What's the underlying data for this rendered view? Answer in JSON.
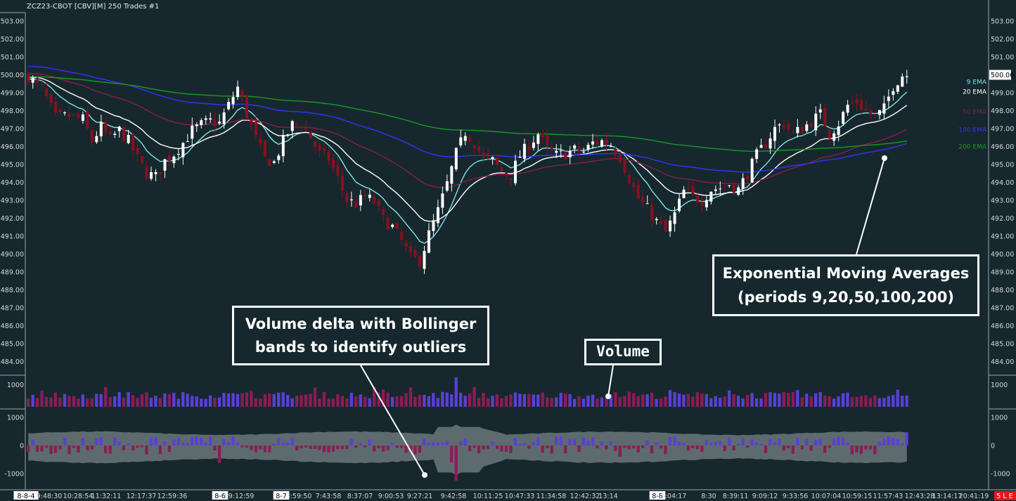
{
  "header": {
    "title": "ZCZ23-CBOT [CBV][M]  250 Trades  #1"
  },
  "chart_data": {
    "type": "candlestick",
    "symbol": "ZCZ23-CBOT",
    "price_axis": {
      "ticks": [
        "503.00",
        "502.00",
        "501.00",
        "500.00",
        "499.00",
        "498.00",
        "497.00",
        "496.00",
        "495.00",
        "494.00",
        "493.00",
        "492.00",
        "491.00",
        "490.00",
        "489.00",
        "488.00",
        "487.00",
        "486.00",
        "485.00",
        "484.00"
      ],
      "range": [
        483.6,
        503.6
      ],
      "last_price": "500.00"
    },
    "price_path": [
      [
        0,
        499.9
      ],
      [
        3,
        499.2
      ],
      [
        6,
        497.6
      ],
      [
        9,
        497.7
      ],
      [
        12,
        497.5
      ],
      [
        14,
        496.3
      ],
      [
        16,
        497.1
      ],
      [
        18,
        496.4
      ],
      [
        20,
        496.9
      ],
      [
        22,
        496.3
      ],
      [
        24,
        495.3
      ],
      [
        26,
        494.5
      ],
      [
        28,
        494.3
      ],
      [
        30,
        495.2
      ],
      [
        32,
        495.6
      ],
      [
        34,
        496.2
      ],
      [
        36,
        496.9
      ],
      [
        38,
        497.2
      ],
      [
        40,
        497.4
      ],
      [
        42,
        497.3
      ],
      [
        44,
        498.3
      ],
      [
        46,
        499.3
      ],
      [
        48,
        497.8
      ],
      [
        50,
        496.4
      ],
      [
        52,
        495.3
      ],
      [
        54,
        495.1
      ],
      [
        56,
        496.3
      ],
      [
        58,
        497.2
      ],
      [
        60,
        497.3
      ],
      [
        62,
        496.5
      ],
      [
        64,
        495.6
      ],
      [
        66,
        495.3
      ],
      [
        68,
        494.2
      ],
      [
        70,
        493.0
      ],
      [
        72,
        492.8
      ],
      [
        74,
        493.2
      ],
      [
        76,
        492.9
      ],
      [
        78,
        491.9
      ],
      [
        80,
        491.5
      ],
      [
        82,
        490.7
      ],
      [
        84,
        489.8
      ],
      [
        86,
        489.6
      ],
      [
        88,
        491.1
      ],
      [
        90,
        492.4
      ],
      [
        92,
        493.9
      ],
      [
        94,
        495.6
      ],
      [
        96,
        496.8
      ],
      [
        98,
        496.2
      ],
      [
        100,
        495.3
      ],
      [
        102,
        495.2
      ],
      [
        104,
        494.6
      ],
      [
        106,
        494.4
      ],
      [
        108,
        495.5
      ],
      [
        110,
        496.1
      ],
      [
        112,
        496.7
      ],
      [
        114,
        495.8
      ],
      [
        116,
        495.5
      ],
      [
        118,
        495.6
      ],
      [
        120,
        495.8
      ],
      [
        122,
        495.7
      ],
      [
        124,
        496.2
      ],
      [
        126,
        496.3
      ],
      [
        128,
        496.1
      ],
      [
        130,
        495.4
      ],
      [
        132,
        494.2
      ],
      [
        134,
        493.1
      ],
      [
        136,
        492.5
      ],
      [
        138,
        491.8
      ],
      [
        140,
        491.2
      ],
      [
        142,
        492.2
      ],
      [
        144,
        493.5
      ],
      [
        146,
        493.2
      ],
      [
        148,
        493.0
      ],
      [
        150,
        493.6
      ],
      [
        152,
        493.7
      ],
      [
        154,
        493.9
      ],
      [
        156,
        493.6
      ],
      [
        158,
        494.5
      ],
      [
        160,
        495.5
      ],
      [
        162,
        496.2
      ],
      [
        164,
        497.0
      ],
      [
        166,
        497.3
      ],
      [
        168,
        496.7
      ],
      [
        170,
        497.0
      ],
      [
        172,
        497.4
      ],
      [
        174,
        497.8
      ],
      [
        176,
        496.7
      ],
      [
        178,
        497.3
      ],
      [
        180,
        498.3
      ],
      [
        182,
        498.5
      ],
      [
        184,
        498.0
      ],
      [
        186,
        497.6
      ],
      [
        188,
        498.1
      ],
      [
        190,
        499.4
      ],
      [
        192,
        500.0
      ],
      [
        193,
        500.0
      ]
    ],
    "moving_averages": [
      {
        "name": "9 EMA",
        "color": "#7fe3e8",
        "label_price": 499.6,
        "start": 499.8
      },
      {
        "name": "20 EMA",
        "color": "#ffffff",
        "label_price": 499.05,
        "start": 499.9
      },
      {
        "name": "50 EMA",
        "color": "#8b1c4a",
        "label_price": 497.95,
        "start": 500.1
      },
      {
        "name": "100 EMA",
        "color": "#3333ff",
        "label_price": 496.95,
        "start": 500.5
      },
      {
        "name": "200 EMA",
        "color": "#179a25",
        "label_price": 496.0,
        "start": 499.9
      }
    ],
    "volume": {
      "ticks": [
        "1000"
      ],
      "range": [
        0,
        1500
      ]
    },
    "volume_delta": {
      "ticks": [
        "1000",
        "0",
        "-1000"
      ],
      "range": [
        -1300,
        1450
      ],
      "band_color": "#6a777b"
    },
    "time_axis": {
      "labels": [
        {
          "text": "8-8-4",
          "boxed": true
        },
        {
          "text": "9:48:30"
        },
        {
          "text": "10:28:54"
        },
        {
          "text": "11:32:11"
        },
        {
          "text": "12:17:37"
        },
        {
          "text": "12:59:36"
        },
        {
          "text": "8-6",
          "boxed": true
        },
        {
          "text": "19:12:59"
        },
        {
          "text": "8-7",
          "boxed": true
        },
        {
          "text": "3:59:50"
        },
        {
          "text": "7:43:58"
        },
        {
          "text": "8:37:07"
        },
        {
          "text": "9:00:53"
        },
        {
          "text": "9:27:21"
        },
        {
          "text": "9:42:58"
        },
        {
          "text": "10:11:25"
        },
        {
          "text": "10:47:33"
        },
        {
          "text": "11:34:58"
        },
        {
          "text": "12:42:32"
        },
        {
          "text": "13:14"
        },
        {
          "text": "8-8",
          "boxed": true
        },
        {
          "text": "5:04:17"
        },
        {
          "text": "8:30"
        },
        {
          "text": "8:39:11"
        },
        {
          "text": "9:09:12"
        },
        {
          "text": "9:33:56"
        },
        {
          "text": "10:07:04"
        },
        {
          "text": "10:59:15"
        },
        {
          "text": "11:57:43"
        },
        {
          "text": "12:43:28"
        },
        {
          "text": "13:14:17"
        },
        {
          "text": "20:41:19"
        }
      ],
      "status": "5 L E"
    },
    "colors": {
      "up": "#ffffff",
      "down": "#8b0f1f",
      "vol_up": "#5a3fd6",
      "vol_down": "#8b1c56",
      "background": "#16282d"
    }
  },
  "annotations": {
    "ema": [
      "Exponential Moving Averages",
      "(periods 9,20,50,100,200)"
    ],
    "volume_delta": [
      "Volume delta with Bollinger",
      "bands to identify outliers"
    ],
    "volume": "Volume"
  }
}
